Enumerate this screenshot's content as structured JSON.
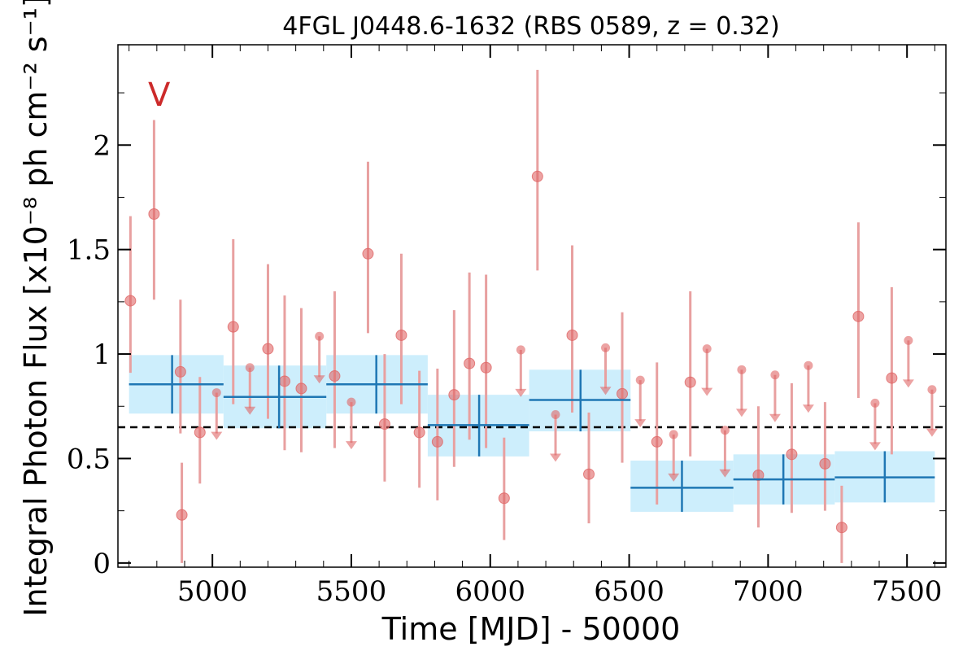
{
  "chart_data": {
    "type": "scatter",
    "title": "4FGL J0448.6-1632 (RBS 0589, z = 0.32)",
    "xlabel": "Time [MJD] - 50000",
    "ylabel": "Integral Photon Flux [x10⁻⁸ ph cm⁻² s⁻¹]",
    "band_label": "V",
    "xlim": [
      4660,
      7640
    ],
    "ylim": [
      -0.02,
      2.48
    ],
    "x_ticks": [
      5000,
      5500,
      6000,
      6500,
      7000,
      7500
    ],
    "x_tick_labels": [
      "5000",
      "5500",
      "6000",
      "6500",
      "7000",
      "7500"
    ],
    "y_ticks": [
      0,
      0.5,
      1,
      1.5,
      2
    ],
    "y_tick_labels": [
      "0",
      "0.5",
      "1",
      "1.5",
      "2"
    ],
    "mean_flux": 0.65,
    "colors": {
      "points": "#e06666",
      "errorbars": "#e8a0a0",
      "bins": "#1f77b4",
      "bin_fill": "#cdeefc",
      "mean_line": "#000000",
      "band_label": "#cc2a2a"
    },
    "detections": [
      {
        "x": 4705,
        "y": 1.255,
        "ylo": 0.91,
        "yhi": 1.66
      },
      {
        "x": 4790,
        "y": 1.67,
        "ylo": 1.26,
        "yhi": 2.12
      },
      {
        "x": 4885,
        "y": 0.915,
        "ylo": 0.62,
        "yhi": 1.26
      },
      {
        "x": 4890,
        "y": 0.23,
        "ylo": 0.0,
        "yhi": 0.48
      },
      {
        "x": 4955,
        "y": 0.625,
        "ylo": 0.38,
        "yhi": 0.89
      },
      {
        "x": 5075,
        "y": 1.13,
        "ylo": 0.76,
        "yhi": 1.55
      },
      {
        "x": 5200,
        "y": 1.025,
        "ylo": 0.69,
        "yhi": 1.43
      },
      {
        "x": 5260,
        "y": 0.87,
        "ylo": 0.54,
        "yhi": 1.28
      },
      {
        "x": 5320,
        "y": 0.835,
        "ylo": 0.53,
        "yhi": 1.22
      },
      {
        "x": 5440,
        "y": 0.895,
        "ylo": 0.55,
        "yhi": 1.3
      },
      {
        "x": 5560,
        "y": 1.48,
        "ylo": 1.1,
        "yhi": 1.92
      },
      {
        "x": 5620,
        "y": 0.665,
        "ylo": 0.39,
        "yhi": 1.0
      },
      {
        "x": 5680,
        "y": 1.09,
        "ylo": 0.76,
        "yhi": 1.48
      },
      {
        "x": 5745,
        "y": 0.625,
        "ylo": 0.36,
        "yhi": 0.92
      },
      {
        "x": 5810,
        "y": 0.58,
        "ylo": 0.3,
        "yhi": 0.93
      },
      {
        "x": 5870,
        "y": 0.805,
        "ylo": 0.46,
        "yhi": 1.21
      },
      {
        "x": 5925,
        "y": 0.955,
        "ylo": 0.59,
        "yhi": 1.39
      },
      {
        "x": 5985,
        "y": 0.935,
        "ylo": 0.55,
        "yhi": 1.38
      },
      {
        "x": 6050,
        "y": 0.31,
        "ylo": 0.11,
        "yhi": 0.6
      },
      {
        "x": 6170,
        "y": 1.85,
        "ylo": 1.4,
        "yhi": 2.36
      },
      {
        "x": 6295,
        "y": 1.09,
        "ylo": 0.72,
        "yhi": 1.52
      },
      {
        "x": 6355,
        "y": 0.425,
        "ylo": 0.19,
        "yhi": 0.72
      },
      {
        "x": 6475,
        "y": 0.81,
        "ylo": 0.48,
        "yhi": 1.2
      },
      {
        "x": 6600,
        "y": 0.58,
        "ylo": 0.28,
        "yhi": 0.96
      },
      {
        "x": 6720,
        "y": 0.865,
        "ylo": 0.51,
        "yhi": 1.3
      },
      {
        "x": 6965,
        "y": 0.42,
        "ylo": 0.17,
        "yhi": 0.75
      },
      {
        "x": 7085,
        "y": 0.52,
        "ylo": 0.24,
        "yhi": 0.86
      },
      {
        "x": 7205,
        "y": 0.475,
        "ylo": 0.25,
        "yhi": 0.77
      },
      {
        "x": 7265,
        "y": 0.17,
        "ylo": 0.0,
        "yhi": 0.37
      },
      {
        "x": 7325,
        "y": 1.18,
        "ylo": 0.79,
        "yhi": 1.63
      },
      {
        "x": 7445,
        "y": 0.885,
        "ylo": 0.52,
        "yhi": 1.32
      }
    ],
    "upper_limits": [
      {
        "x": 5015,
        "y": 0.815
      },
      {
        "x": 5135,
        "y": 0.935
      },
      {
        "x": 5385,
        "y": 1.085
      },
      {
        "x": 5500,
        "y": 0.77
      },
      {
        "x": 6110,
        "y": 1.02
      },
      {
        "x": 6235,
        "y": 0.71
      },
      {
        "x": 6415,
        "y": 1.03
      },
      {
        "x": 6540,
        "y": 0.875
      },
      {
        "x": 6660,
        "y": 0.615
      },
      {
        "x": 6780,
        "y": 1.025
      },
      {
        "x": 6845,
        "y": 0.635
      },
      {
        "x": 6905,
        "y": 0.925
      },
      {
        "x": 7025,
        "y": 0.9
      },
      {
        "x": 7145,
        "y": 0.945
      },
      {
        "x": 7385,
        "y": 0.765
      },
      {
        "x": 7505,
        "y": 1.065
      },
      {
        "x": 7590,
        "y": 0.83
      }
    ],
    "bins": [
      {
        "x0": 4700,
        "x1": 5040,
        "xc": 4855,
        "y": 0.855,
        "ylo": 0.715,
        "yhi": 0.995
      },
      {
        "x0": 5040,
        "x1": 5410,
        "xc": 5240,
        "y": 0.795,
        "ylo": 0.645,
        "yhi": 0.945
      },
      {
        "x0": 5410,
        "x1": 5775,
        "xc": 5590,
        "y": 0.855,
        "ylo": 0.715,
        "yhi": 0.995
      },
      {
        "x0": 5775,
        "x1": 6140,
        "xc": 5960,
        "y": 0.66,
        "ylo": 0.51,
        "yhi": 0.805
      },
      {
        "x0": 6140,
        "x1": 6505,
        "xc": 6325,
        "y": 0.78,
        "ylo": 0.63,
        "yhi": 0.925
      },
      {
        "x0": 6505,
        "x1": 6875,
        "xc": 6690,
        "y": 0.36,
        "ylo": 0.245,
        "yhi": 0.49
      },
      {
        "x0": 6875,
        "x1": 7240,
        "xc": 7055,
        "y": 0.4,
        "ylo": 0.28,
        "yhi": 0.52
      },
      {
        "x0": 7240,
        "x1": 7600,
        "xc": 7420,
        "y": 0.41,
        "ylo": 0.29,
        "yhi": 0.535
      }
    ]
  }
}
